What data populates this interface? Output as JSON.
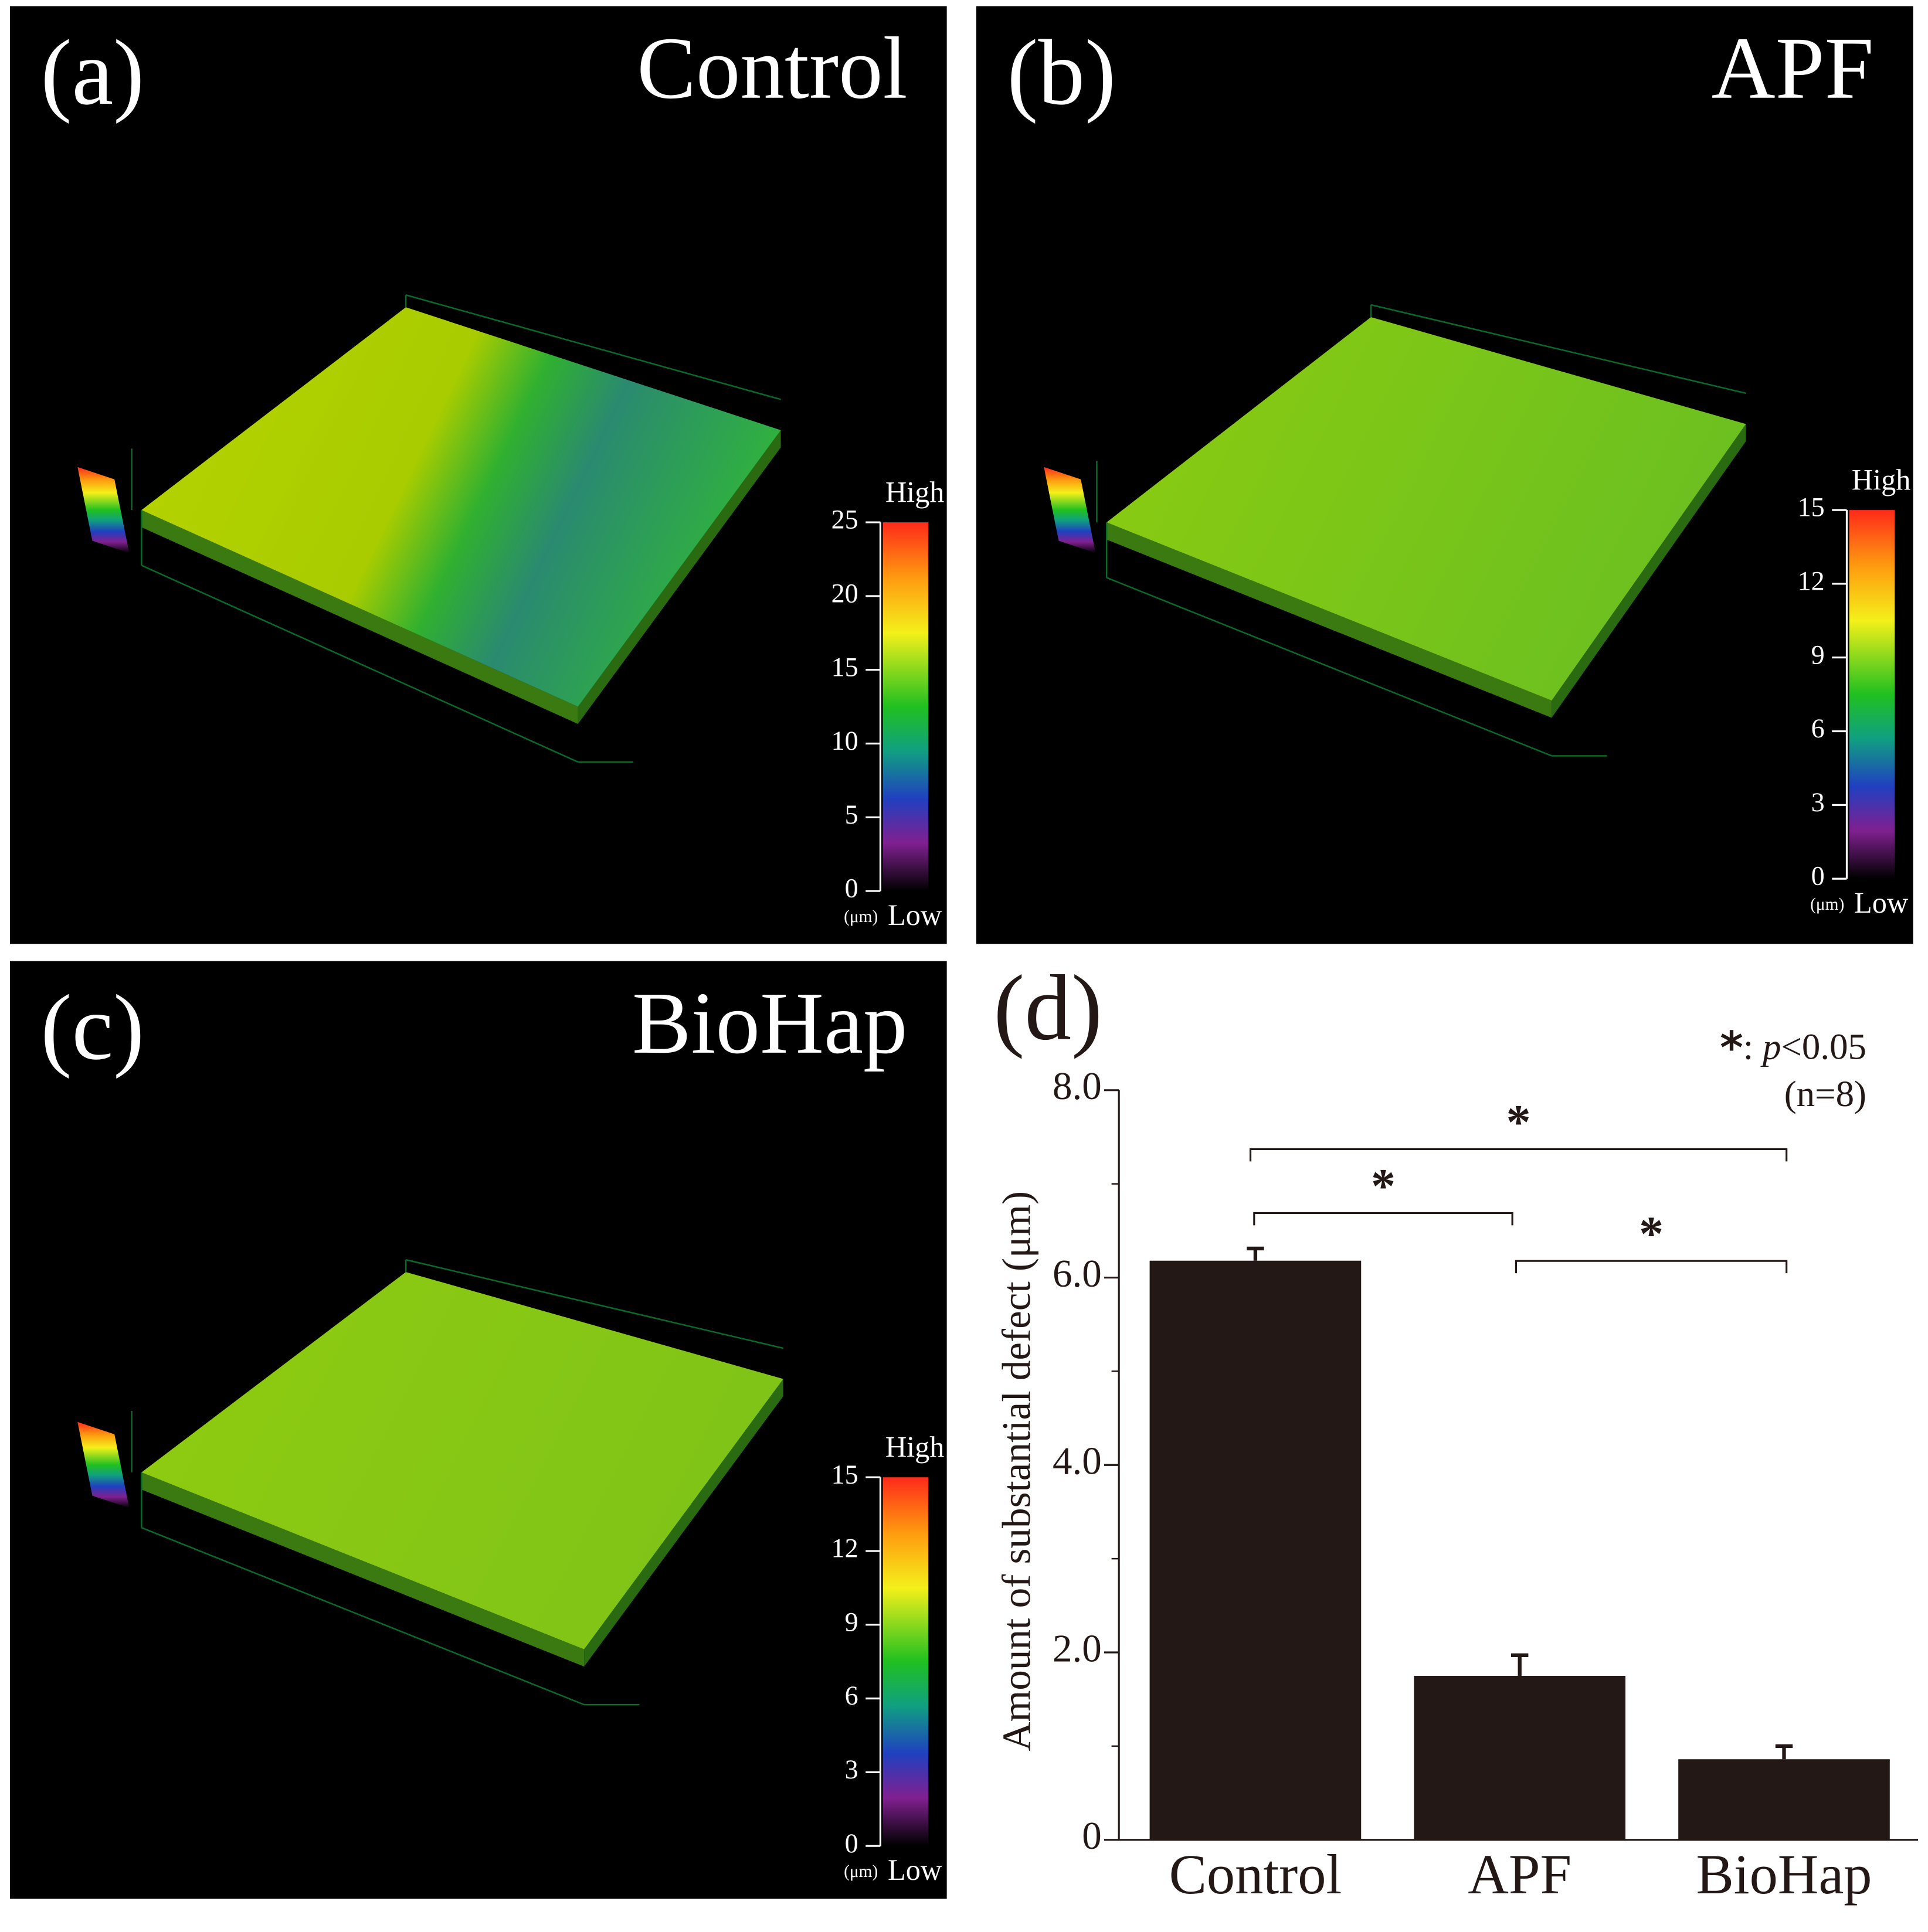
{
  "chart_data": [
    {
      "type": "surface",
      "label": "(a)",
      "title": "Control",
      "colorbar": {
        "high": "High",
        "low": "Low",
        "unit": "(μm)",
        "lim": [
          0,
          25
        ],
        "ticks": [
          0,
          5,
          10,
          15,
          20,
          25
        ]
      }
    },
    {
      "type": "surface",
      "label": "(b)",
      "title": "APF",
      "colorbar": {
        "high": "High",
        "low": "Low",
        "unit": "(μm)",
        "lim": [
          0,
          15
        ],
        "ticks": [
          0,
          3,
          6,
          9,
          12,
          15
        ]
      }
    },
    {
      "type": "surface",
      "label": "(c)",
      "title": "BioHap",
      "colorbar": {
        "high": "High",
        "low": "Low",
        "unit": "(μm)",
        "lim": [
          0,
          15
        ],
        "ticks": [
          0,
          3,
          6,
          9,
          12,
          15
        ]
      }
    },
    {
      "type": "bar",
      "label": "(d)",
      "ylabel": "Amount of substantial defect (μm)",
      "categories": [
        "Control",
        "APF",
        "BioHap"
      ],
      "values": [
        6.18,
        1.75,
        0.86
      ],
      "errors": [
        0.13,
        0.22,
        0.14
      ],
      "color": "#231815",
      "ylim": [
        0,
        8
      ],
      "yticks": [
        0,
        {
          "value": 2,
          "label": "2.0"
        },
        {
          "value": 4,
          "label": "4.0"
        },
        {
          "value": 6,
          "label": "6.0"
        },
        {
          "value": 8,
          "label": "8.0"
        }
      ],
      "minor_yticks": [
        1,
        3,
        5,
        7
      ],
      "note": [
        "*",
        ": ",
        "p",
        "<0.05"
      ],
      "n_note": "(n=8)",
      "comparisons": [
        {
          "from": 0,
          "to": 2,
          "label": "*"
        },
        {
          "from": 0,
          "to": 1,
          "label": "*"
        },
        {
          "from": 1,
          "to": 2,
          "label": "*"
        }
      ]
    }
  ]
}
